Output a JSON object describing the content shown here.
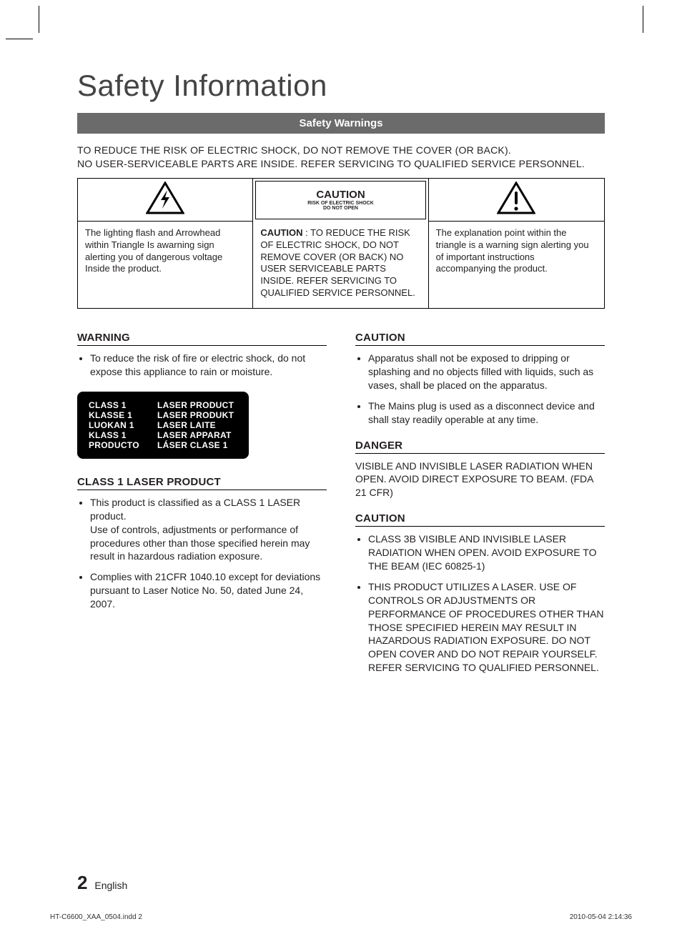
{
  "page": {
    "title": "Safety Information",
    "section_bar": "Safety Warnings",
    "intro_line1": "TO REDUCE THE RISK OF ELECTRIC SHOCK, DO NOT REMOVE THE COVER (OR BACK).",
    "intro_line2": "NO USER-SERVICEABLE PARTS ARE INSIDE. REFER SERVICING TO QUALIFIED SERVICE PERSONNEL.",
    "page_number": "2",
    "page_lang": "English",
    "print_left": "HT-C6600_XAA_0504.indd   2",
    "print_right": "2010-05-04   2:14:36"
  },
  "hazard": {
    "caution_title": "CAUTION",
    "caution_sub1": "RISK OF ELECTRIC SHOCK",
    "caution_sub2": "DO NOT OPEN",
    "left_desc": "The lighting flash and Arrowhead within Triangle Is awarning sign alerting you of dangerous voltage Inside the product.",
    "center_lead": "CAUTION",
    "center_desc": " : TO REDUCE THE RISK OF ELECTRIC SHOCK, DO NOT REMOVE COVER (OR BACK) NO USER SERVICEABLE PARTS INSIDE. REFER SERVICING TO QUALIFIED SERVICE PERSONNEL.",
    "right_desc": "The explanation point within the triangle is a warning sign alerting you of important instructions accompanying the product."
  },
  "left_col": {
    "warning_heading": "WARNING",
    "warning_bullets": [
      "To reduce the risk of fire or electric shock, do not expose this appliance to rain or moisture."
    ],
    "laser_rows": [
      [
        "CLASS 1",
        "LASER PRODUCT"
      ],
      [
        "KLASSE 1",
        "LASER PRODUKT"
      ],
      [
        "LUOKAN 1",
        "LASER LAITE"
      ],
      [
        "KLASS 1",
        "LASER APPARAT"
      ],
      [
        "PRODUCTO",
        "LÁSER CLASE 1"
      ]
    ],
    "class1_heading": "CLASS 1 LASER PRODUCT",
    "class1_bullets": [
      "This product is classified as a CLASS 1 LASER product.\nUse of controls, adjustments or performance of procedures other than those specified herein may result in hazardous radiation exposure.",
      "Complies with 21CFR 1040.10 except for deviations pursuant to Laser Notice No. 50, dated June 24, 2007."
    ]
  },
  "right_col": {
    "caution_heading": "CAUTION",
    "caution_bullets": [
      "Apparatus shall not be exposed to dripping or splashing and no objects filled with liquids, such as vases, shall be placed on the apparatus.",
      "The Mains plug is used as a disconnect device and shall stay readily operable at any time."
    ],
    "danger_heading": "DANGER",
    "danger_text": "VISIBLE AND INVISIBLE LASER RADIATION WHEN OPEN. AVOID DIRECT EXPOSURE TO BEAM. (FDA 21 CFR)",
    "caution2_heading": "CAUTION",
    "caution2_bullets": [
      "CLASS 3B VISIBLE AND INVISIBLE LASER RADIATION WHEN OPEN. AVOID EXPOSURE TO THE BEAM (IEC 60825-1)",
      "THIS PRODUCT UTILIZES A LASER. USE OF CONTROLS OR ADJUSTMENTS OR PERFORMANCE OF PROCEDURES OTHER THAN THOSE SPECIFIED HEREIN MAY RESULT IN HAZARDOUS RADIATION EXPOSURE. DO NOT OPEN COVER AND DO NOT REPAIR YOURSELF. REFER SERVICING TO QUALIFIED PERSONNEL."
    ]
  },
  "icons": {
    "bolt_color": "#000000",
    "excl_color": "#000000"
  }
}
